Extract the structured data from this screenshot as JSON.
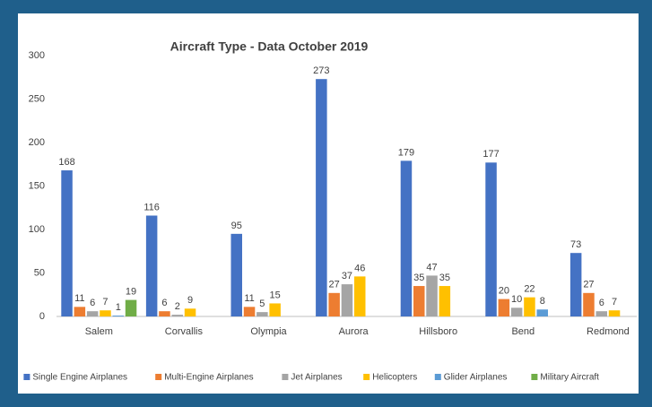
{
  "chart_data": {
    "type": "bar",
    "title": "Aircraft Type - Data October 2019",
    "categories": [
      "Salem",
      "Corvallis",
      "Olympia",
      "Aurora",
      "Hillsboro",
      "Bend",
      "Redmond"
    ],
    "series": [
      {
        "name": "Single Engine Airplanes",
        "color": "#4472c4",
        "values": [
          168,
          116,
          95,
          273,
          179,
          177,
          73
        ]
      },
      {
        "name": "Multi-Engine Airplanes",
        "color": "#ed7d31",
        "values": [
          11,
          6,
          11,
          27,
          35,
          20,
          27
        ]
      },
      {
        "name": "Jet Airplanes",
        "color": "#a5a5a5",
        "values": [
          6,
          2,
          5,
          37,
          47,
          10,
          6
        ]
      },
      {
        "name": "Helicopters",
        "color": "#ffc000",
        "values": [
          7,
          9,
          15,
          46,
          35,
          22,
          7
        ]
      },
      {
        "name": "Glider Airplanes",
        "color": "#5b9bd5",
        "values": [
          1,
          null,
          null,
          null,
          null,
          8,
          null
        ]
      },
      {
        "name": "Military Aircraft",
        "color": "#70ad47",
        "values": [
          19,
          null,
          null,
          null,
          null,
          null,
          null
        ]
      }
    ],
    "ylim": [
      0,
      300
    ],
    "yticks": [
      0,
      50,
      100,
      150,
      200,
      250,
      300
    ],
    "grid": false,
    "legend": "bottom"
  }
}
